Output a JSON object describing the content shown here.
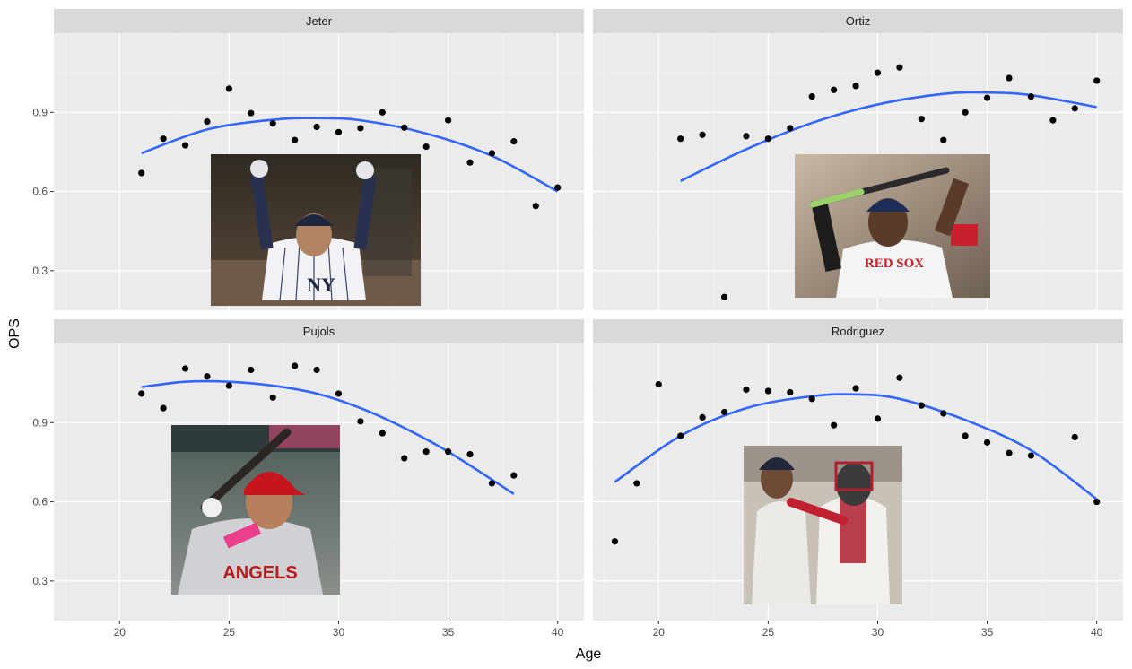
{
  "chart_data": {
    "type": "scatter",
    "facet_layout": "2x2",
    "xlabel": "Age",
    "ylabel": "OPS",
    "xlim": [
      17,
      41.2
    ],
    "ylim": [
      0.15,
      1.2
    ],
    "x_ticks": [
      20,
      25,
      30,
      35,
      40
    ],
    "x_tick_labels": [
      "20",
      "25",
      "30",
      "35",
      "40"
    ],
    "y_ticks": [
      0.3,
      0.6,
      0.9
    ],
    "y_tick_labels": [
      "0.3",
      "0.6",
      "0.9"
    ],
    "grid": true,
    "trend": "quadratic smooth",
    "colors": {
      "panel_bg": "#ebebeb",
      "strip_bg": "#d9d9d9",
      "grid_major": "#ffffff",
      "point": "#000000",
      "smooth": "#3366ff"
    },
    "panels": [
      {
        "name": "Jeter",
        "photo": "photo-jeter-celebrating",
        "x": [
          21,
          22,
          23,
          24,
          25,
          26,
          27,
          28,
          29,
          30,
          31,
          32,
          33,
          34,
          35,
          36,
          37,
          38,
          39,
          40
        ],
        "y": [
          0.67,
          0.8,
          0.775,
          0.865,
          0.99,
          0.897,
          0.858,
          0.795,
          0.845,
          0.825,
          0.84,
          0.9,
          0.842,
          0.77,
          0.87,
          0.71,
          0.745,
          0.79,
          0.545,
          0.615
        ],
        "smooth": {
          "x": [
            21,
            24,
            27,
            29,
            31,
            34,
            37,
            40
          ],
          "y": [
            0.745,
            0.835,
            0.872,
            0.878,
            0.87,
            0.82,
            0.735,
            0.6
          ]
        }
      },
      {
        "name": "Ortiz",
        "photo": "photo-ortiz-batting",
        "x": [
          21,
          22,
          23,
          24,
          25,
          26,
          27,
          28,
          29,
          30,
          31,
          32,
          33,
          34,
          35,
          36,
          37,
          38,
          39,
          40
        ],
        "y": [
          0.8,
          0.815,
          0.2,
          0.81,
          0.8,
          0.84,
          0.96,
          0.985,
          1.0,
          1.05,
          1.07,
          0.875,
          0.795,
          0.9,
          0.955,
          1.03,
          0.96,
          0.87,
          0.915,
          1.02
        ],
        "smooth": {
          "x": [
            21,
            24,
            27,
            30,
            33,
            35,
            37,
            40
          ],
          "y": [
            0.64,
            0.76,
            0.86,
            0.93,
            0.97,
            0.975,
            0.965,
            0.92
          ]
        }
      },
      {
        "name": "Pujols",
        "photo": "photo-pujols-at-bat",
        "x": [
          21,
          22,
          23,
          24,
          25,
          26,
          27,
          28,
          29,
          30,
          31,
          32,
          33,
          34,
          35,
          36,
          37,
          38
        ],
        "y": [
          1.01,
          0.955,
          1.105,
          1.075,
          1.04,
          1.1,
          0.995,
          1.115,
          1.1,
          1.01,
          0.905,
          0.86,
          0.765,
          0.79,
          0.79,
          0.78,
          0.67,
          0.7
        ],
        "smooth": {
          "x": [
            21,
            23,
            25,
            27,
            29,
            31,
            33,
            35,
            38
          ],
          "y": [
            1.035,
            1.055,
            1.055,
            1.04,
            1.01,
            0.955,
            0.88,
            0.79,
            0.63
          ]
        }
      },
      {
        "name": "Rodriguez",
        "photo": "photo-rodriguez-scuffle",
        "x": [
          18,
          19,
          20,
          21,
          22,
          23,
          24,
          25,
          26,
          27,
          28,
          29,
          30,
          31,
          32,
          33,
          34,
          35,
          36,
          37,
          39,
          40
        ],
        "y": [
          0.45,
          0.67,
          1.045,
          0.85,
          0.92,
          0.94,
          1.025,
          1.02,
          1.015,
          0.99,
          0.89,
          1.03,
          0.915,
          1.07,
          0.965,
          0.935,
          0.85,
          0.825,
          0.785,
          0.775,
          0.845,
          0.6
        ],
        "smooth": {
          "x": [
            18,
            21,
            24,
            27,
            29,
            31,
            34,
            37,
            40
          ],
          "y": [
            0.675,
            0.85,
            0.955,
            1.0,
            1.007,
            0.99,
            0.91,
            0.795,
            0.61
          ]
        }
      }
    ]
  }
}
